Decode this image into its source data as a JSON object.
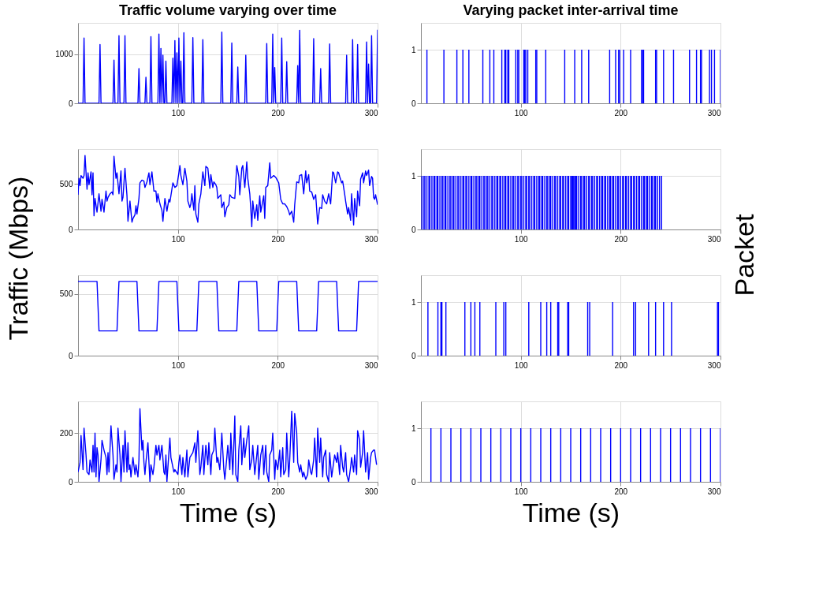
{
  "chart_data": [
    {
      "type": "line",
      "title": "Traffic volume varying over time",
      "color": "#0000ff",
      "xlim": [
        0,
        300
      ],
      "xticks": [
        100,
        200,
        300
      ],
      "ylim": [
        0,
        1640
      ],
      "yticks": [
        0,
        1000
      ],
      "grid": true,
      "x": [
        0,
        5,
        6,
        7,
        21,
        22,
        23,
        35,
        36,
        37,
        40,
        41,
        42,
        46,
        47,
        48,
        60,
        61,
        62,
        67,
        68,
        69,
        72,
        73,
        74,
        80,
        81,
        82,
        83,
        84,
        85,
        86,
        87,
        88,
        89,
        94,
        95,
        96,
        97,
        98,
        99,
        100,
        101,
        102,
        103,
        104,
        105,
        106,
        107,
        114,
        115,
        116,
        124,
        125,
        126,
        143,
        144,
        145,
        153,
        154,
        155,
        159,
        160,
        161,
        167,
        168,
        169,
        188,
        189,
        190,
        194,
        195,
        196,
        197,
        198,
        203,
        204,
        205,
        208,
        209,
        210,
        219,
        220,
        221,
        222,
        223,
        235,
        236,
        237,
        242,
        243,
        244,
        251,
        252,
        253,
        268,
        269,
        270,
        274,
        275,
        276,
        279,
        280,
        281,
        288,
        289,
        290,
        291,
        292,
        293,
        294,
        295,
        299,
        300
      ],
      "values": [
        0,
        0,
        1330,
        0,
        0,
        1200,
        0,
        0,
        880,
        0,
        0,
        1380,
        0,
        0,
        1380,
        0,
        0,
        710,
        0,
        0,
        530,
        0,
        0,
        1360,
        0,
        0,
        1410,
        0,
        1120,
        0,
        980,
        0,
        0,
        860,
        0,
        0,
        920,
        0,
        1280,
        0,
        1030,
        0,
        1330,
        0,
        860,
        0,
        0,
        1440,
        0,
        0,
        1340,
        0,
        0,
        1300,
        0,
        0,
        1450,
        0,
        0,
        1230,
        0,
        0,
        740,
        0,
        0,
        980,
        0,
        0,
        1220,
        0,
        0,
        1410,
        0,
        730,
        0,
        0,
        1330,
        0,
        0,
        850,
        0,
        0,
        770,
        0,
        1490,
        0,
        0,
        1320,
        0,
        0,
        710,
        0,
        0,
        1210,
        0,
        0,
        980,
        0,
        0,
        1300,
        0,
        0,
        1200,
        0,
        0,
        1250,
        0,
        800,
        0,
        0,
        1380,
        0,
        0,
        1500
      ]
    },
    {
      "type": "bar",
      "title": "Varying packet inter-arrival time",
      "color": "#0000ff",
      "xlim": [
        0,
        300
      ],
      "xticks": [
        100,
        200,
        300
      ],
      "ylim": [
        0,
        1.5
      ],
      "yticks": [
        0,
        1
      ],
      "grid": true,
      "x": [
        6,
        23,
        36,
        42,
        48,
        62,
        69,
        73,
        81,
        84,
        85,
        87,
        88,
        95,
        97,
        98,
        103,
        104,
        105,
        107,
        115,
        116,
        125,
        144,
        154,
        161,
        168,
        189,
        195,
        198,
        199,
        203,
        210,
        221,
        222,
        223,
        235,
        236,
        243,
        253,
        269,
        276,
        280,
        281,
        289,
        291,
        294,
        300
      ],
      "values": [
        1,
        1,
        1,
        1,
        1,
        1,
        1,
        1,
        1,
        1,
        1,
        1,
        1,
        1,
        1,
        1,
        1,
        1,
        1,
        1,
        1,
        1,
        1,
        1,
        1,
        1,
        1,
        1,
        1,
        1,
        1,
        1,
        1,
        1,
        1,
        1,
        1,
        1,
        1,
        1,
        1,
        1,
        1,
        1,
        1,
        1,
        1,
        1
      ]
    },
    {
      "type": "line",
      "ylabel": "Traffic (Mbps)",
      "color": "#0000ff",
      "xlim": [
        0,
        300
      ],
      "xticks": [
        100,
        200,
        300
      ],
      "ylim": [
        0,
        880
      ],
      "yticks": [
        0,
        500
      ],
      "grid": true,
      "x": [
        0,
        1,
        2,
        3,
        5,
        6,
        7,
        9,
        10,
        11,
        13,
        14,
        15,
        16,
        17,
        19,
        21,
        23,
        24,
        26,
        28,
        29,
        30,
        32,
        34,
        35,
        36,
        38,
        39,
        41,
        43,
        44,
        45,
        47,
        49,
        50,
        52,
        54,
        55,
        57,
        58,
        59,
        61,
        62,
        64,
        66,
        67,
        69,
        71,
        72,
        74,
        76,
        78,
        79,
        80,
        82,
        84,
        85,
        87,
        89,
        91,
        92,
        95,
        97,
        99,
        101,
        102,
        103,
        105,
        107,
        109,
        110,
        112,
        113,
        114,
        116,
        117,
        118,
        120,
        121,
        123,
        125,
        127,
        128,
        130,
        132,
        133,
        135,
        136,
        138,
        139,
        140,
        143,
        144,
        146,
        147,
        149,
        151,
        152,
        154,
        157,
        159,
        161,
        162,
        164,
        165,
        167,
        169,
        170,
        172,
        173,
        174,
        175,
        177,
        179,
        180,
        182,
        183,
        186,
        187,
        188,
        190,
        192,
        193,
        195,
        196,
        198,
        200,
        201,
        203,
        205,
        207,
        209,
        211,
        212,
        214,
        216,
        217,
        219,
        221,
        222,
        224,
        226,
        228,
        229,
        231,
        232,
        234,
        236,
        238,
        240,
        242,
        244,
        245,
        247,
        249,
        251,
        253,
        255,
        256,
        258,
        260,
        261,
        262,
        264,
        265,
        267,
        268,
        270,
        271,
        273,
        274,
        276,
        277,
        279,
        280,
        282,
        283,
        285,
        286,
        288,
        289,
        291,
        292,
        294,
        295,
        296,
        297,
        298,
        300
      ],
      "values": [
        380,
        560,
        480,
        590,
        560,
        590,
        810,
        440,
        620,
        490,
        630,
        380,
        620,
        150,
        340,
        190,
        390,
        200,
        330,
        190,
        420,
        310,
        350,
        390,
        410,
        380,
        800,
        560,
        620,
        390,
        640,
        310,
        350,
        670,
        370,
        90,
        310,
        80,
        120,
        160,
        260,
        170,
        340,
        510,
        540,
        530,
        460,
        520,
        620,
        490,
        630,
        420,
        420,
        300,
        390,
        280,
        210,
        90,
        340,
        200,
        330,
        300,
        510,
        460,
        480,
        620,
        700,
        590,
        490,
        670,
        530,
        310,
        240,
        280,
        390,
        210,
        480,
        170,
        80,
        280,
        390,
        630,
        480,
        690,
        670,
        450,
        600,
        460,
        520,
        490,
        460,
        340,
        380,
        240,
        300,
        140,
        240,
        270,
        380,
        350,
        340,
        700,
        580,
        380,
        670,
        700,
        460,
        740,
        560,
        390,
        230,
        30,
        310,
        120,
        270,
        100,
        370,
        190,
        370,
        120,
        460,
        480,
        730,
        560,
        580,
        590,
        570,
        530,
        510,
        330,
        280,
        280,
        250,
        200,
        160,
        200,
        80,
        270,
        520,
        510,
        590,
        600,
        390,
        640,
        510,
        600,
        420,
        410,
        330,
        380,
        60,
        240,
        230,
        380,
        310,
        280,
        390,
        280,
        630,
        620,
        510,
        630,
        620,
        580,
        510,
        530,
        390,
        310,
        170,
        240,
        100,
        390,
        50,
        340,
        140,
        420,
        260,
        550,
        620,
        510,
        640,
        590,
        650,
        480,
        580,
        560,
        350,
        330,
        380,
        270
      ]
    },
    {
      "type": "bar",
      "ylabel": "Packet",
      "color": "#0000ff",
      "xlim": [
        0,
        300
      ],
      "xticks": [
        100,
        200,
        300
      ],
      "ylim": [
        0,
        1.5
      ],
      "yticks": [
        0,
        1
      ],
      "grid": true,
      "x": [
        1,
        3,
        4,
        6,
        8,
        9,
        11,
        13,
        14,
        16,
        17,
        19,
        21,
        22,
        24,
        25,
        27,
        29,
        30,
        32,
        33,
        35,
        37,
        38,
        40,
        42,
        43,
        45,
        46,
        48,
        50,
        51,
        53,
        55,
        56,
        58,
        59,
        61,
        63,
        64,
        66,
        67,
        69,
        71,
        72,
        74,
        76,
        77,
        79,
        80,
        82,
        84,
        85,
        87,
        88,
        90,
        92,
        93,
        95,
        97,
        98,
        100,
        101,
        103,
        105,
        106,
        108,
        109,
        111,
        113,
        114,
        116,
        118,
        119,
        121,
        122,
        124,
        126,
        127,
        129,
        130,
        132,
        134,
        135,
        137,
        139,
        140,
        142,
        143,
        145,
        147,
        148,
        150,
        151,
        152,
        153,
        154,
        155,
        156,
        158,
        160,
        161,
        163,
        164,
        166,
        168,
        169,
        171,
        172,
        174,
        176,
        177,
        179,
        181,
        182,
        184,
        185,
        187,
        189,
        190,
        192,
        193,
        195,
        197,
        198,
        200,
        202,
        203,
        205,
        206,
        208,
        210,
        211,
        213,
        214,
        216,
        218,
        219,
        221,
        223,
        224,
        226,
        227,
        229,
        231,
        232,
        234,
        235,
        237,
        239,
        241
      ],
      "values": [
        1,
        1,
        1,
        1,
        1,
        1,
        1,
        1,
        1,
        1,
        1,
        1,
        1,
        1,
        1,
        1,
        1,
        1,
        1,
        1,
        1,
        1,
        1,
        1,
        1,
        1,
        1,
        1,
        1,
        1,
        1,
        1,
        1,
        1,
        1,
        1,
        1,
        1,
        1,
        1,
        1,
        1,
        1,
        1,
        1,
        1,
        1,
        1,
        1,
        1,
        1,
        1,
        1,
        1,
        1,
        1,
        1,
        1,
        1,
        1,
        1,
        1,
        1,
        1,
        1,
        1,
        1,
        1,
        1,
        1,
        1,
        1,
        1,
        1,
        1,
        1,
        1,
        1,
        1,
        1,
        1,
        1,
        1,
        1,
        1,
        1,
        1,
        1,
        1,
        1,
        1,
        1,
        1,
        1,
        1,
        1,
        1,
        1,
        1,
        1,
        1,
        1,
        1,
        1,
        1,
        1,
        1,
        1,
        1,
        1,
        1,
        1,
        1,
        1,
        1,
        1,
        1,
        1,
        1,
        1,
        1,
        1,
        1,
        1,
        1,
        1,
        1,
        1,
        1,
        1,
        1,
        1,
        1,
        1,
        1,
        1,
        1,
        1,
        1,
        1,
        1,
        1,
        1,
        1,
        1,
        1,
        1,
        1,
        1,
        1,
        1
      ]
    },
    {
      "type": "line",
      "color": "#0000ff",
      "xlim": [
        0,
        300
      ],
      "xticks": [
        100,
        200,
        300
      ],
      "ylim": [
        0,
        650
      ],
      "yticks": [
        0,
        500
      ],
      "grid": true,
      "x": [
        0,
        19,
        21,
        39,
        41,
        59,
        61,
        79,
        81,
        99,
        101,
        119,
        121,
        139,
        141,
        159,
        161,
        179,
        181,
        199,
        201,
        219,
        221,
        239,
        241,
        259,
        261,
        279,
        281,
        300
      ],
      "values": [
        600,
        600,
        200,
        200,
        600,
        600,
        200,
        200,
        600,
        600,
        200,
        200,
        600,
        600,
        200,
        200,
        600,
        600,
        200,
        200,
        600,
        600,
        200,
        200,
        600,
        600,
        200,
        200,
        600,
        600
      ]
    },
    {
      "type": "bar",
      "color": "#0000ff",
      "xlim": [
        0,
        300
      ],
      "xticks": [
        100,
        200,
        300
      ],
      "ylim": [
        0,
        1.5
      ],
      "yticks": [
        0,
        1
      ],
      "grid": true,
      "x": [
        7,
        17,
        20,
        21,
        25,
        44,
        50,
        54,
        59,
        75,
        83,
        85,
        108,
        120,
        126,
        130,
        137,
        138,
        147,
        148,
        167,
        169,
        192,
        213,
        215,
        228,
        235,
        243,
        251,
        297,
        298
      ],
      "values": [
        1,
        1,
        1,
        1,
        1,
        1,
        1,
        1,
        1,
        1,
        1,
        1,
        1,
        1,
        1,
        1,
        1,
        1,
        1,
        1,
        1,
        1,
        1,
        1,
        1,
        1,
        1,
        1,
        1,
        1,
        1
      ]
    },
    {
      "type": "line",
      "xlabel": "Time (s)",
      "color": "#0000ff",
      "xlim": [
        0,
        300
      ],
      "xticks": [
        100,
        200,
        300
      ],
      "ylim": [
        0,
        330
      ],
      "yticks": [
        0,
        200
      ],
      "grid": true,
      "x": [
        0,
        2,
        3,
        5,
        6,
        8,
        9,
        11,
        12,
        14,
        15,
        16,
        17,
        18,
        19,
        20,
        21,
        23,
        24,
        26,
        28,
        29,
        30,
        31,
        33,
        35,
        36,
        38,
        39,
        40,
        42,
        43,
        45,
        46,
        47,
        49,
        50,
        51,
        52,
        53,
        55,
        57,
        58,
        60,
        61,
        62,
        64,
        65,
        66,
        67,
        68,
        70,
        72,
        73,
        75,
        76,
        78,
        79,
        81,
        82,
        84,
        86,
        87,
        88,
        89,
        92,
        93,
        96,
        97,
        100,
        101,
        102,
        104,
        105,
        107,
        109,
        110,
        112,
        115,
        117,
        118,
        120,
        122,
        123,
        125,
        126,
        128,
        130,
        131,
        133,
        134,
        136,
        137,
        139,
        140,
        142,
        143,
        144,
        146,
        147,
        149,
        150,
        152,
        153,
        155,
        157,
        158,
        160,
        161,
        163,
        164,
        166,
        167,
        169,
        171,
        172,
        174,
        175,
        177,
        178,
        180,
        181,
        183,
        185,
        186,
        188,
        189,
        191,
        192,
        194,
        195,
        197,
        198,
        200,
        202,
        203,
        205,
        206,
        208,
        209,
        211,
        212,
        214,
        216,
        217,
        219,
        220,
        222,
        223,
        225,
        226,
        228,
        230,
        231,
        233,
        234,
        236,
        237,
        239,
        240,
        242,
        243,
        245,
        246,
        248,
        249,
        251,
        252,
        254,
        255,
        257,
        259,
        260,
        262,
        263,
        265,
        266,
        268,
        269,
        271,
        273,
        274,
        276,
        277,
        279,
        280,
        282,
        283,
        285,
        286,
        288,
        290,
        291,
        293,
        294,
        296,
        297,
        299
      ],
      "values": [
        40,
        80,
        190,
        50,
        220,
        110,
        40,
        30,
        90,
        40,
        150,
        40,
        200,
        20,
        140,
        110,
        0,
        90,
        170,
        130,
        100,
        30,
        120,
        40,
        230,
        110,
        10,
        70,
        40,
        220,
        110,
        0,
        150,
        40,
        210,
        40,
        160,
        50,
        70,
        20,
        100,
        30,
        70,
        20,
        90,
        300,
        130,
        170,
        80,
        30,
        80,
        160,
        0,
        70,
        30,
        60,
        150,
        110,
        150,
        90,
        150,
        40,
        30,
        110,
        0,
        180,
        100,
        40,
        50,
        30,
        80,
        110,
        30,
        100,
        20,
        130,
        20,
        100,
        120,
        160,
        80,
        210,
        30,
        60,
        150,
        30,
        150,
        70,
        160,
        30,
        110,
        130,
        220,
        80,
        100,
        50,
        120,
        200,
        50,
        10,
        100,
        150,
        50,
        200,
        30,
        270,
        30,
        0,
        130,
        230,
        70,
        180,
        100,
        170,
        230,
        50,
        90,
        150,
        30,
        70,
        150,
        10,
        110,
        150,
        30,
        150,
        40,
        0,
        110,
        130,
        200,
        10,
        90,
        50,
        130,
        20,
        140,
        30,
        50,
        200,
        20,
        90,
        290,
        80,
        280,
        200,
        80,
        40,
        70,
        20,
        40,
        10,
        30,
        90,
        40,
        30,
        90,
        180,
        20,
        220,
        80,
        180,
        20,
        100,
        130,
        30,
        0,
        120,
        20,
        50,
        110,
        80,
        120,
        30,
        150,
        60,
        40,
        120,
        30,
        0,
        60,
        100,
        40,
        110,
        30,
        210,
        170,
        60,
        120,
        210,
        40,
        120,
        10,
        100,
        120,
        130,
        130,
        70
      ]
    },
    {
      "type": "bar",
      "xlabel": "Time (s)",
      "color": "#0000ff",
      "xlim": [
        0,
        300
      ],
      "xticks": [
        100,
        200,
        300
      ],
      "ylim": [
        0,
        1.5
      ],
      "yticks": [
        0,
        1
      ],
      "grid": true,
      "x": [
        10,
        20,
        30,
        40,
        50,
        60,
        70,
        80,
        90,
        100,
        110,
        120,
        130,
        140,
        150,
        160,
        170,
        180,
        190,
        200,
        210,
        220,
        230,
        240,
        250,
        260,
        270,
        280,
        290,
        300
      ],
      "values": [
        1,
        1,
        1,
        1,
        1,
        1,
        1,
        1,
        1,
        1,
        1,
        1,
        1,
        1,
        1,
        1,
        1,
        1,
        1,
        1,
        1,
        1,
        1,
        1,
        1,
        1,
        1,
        1,
        1,
        1
      ]
    }
  ]
}
